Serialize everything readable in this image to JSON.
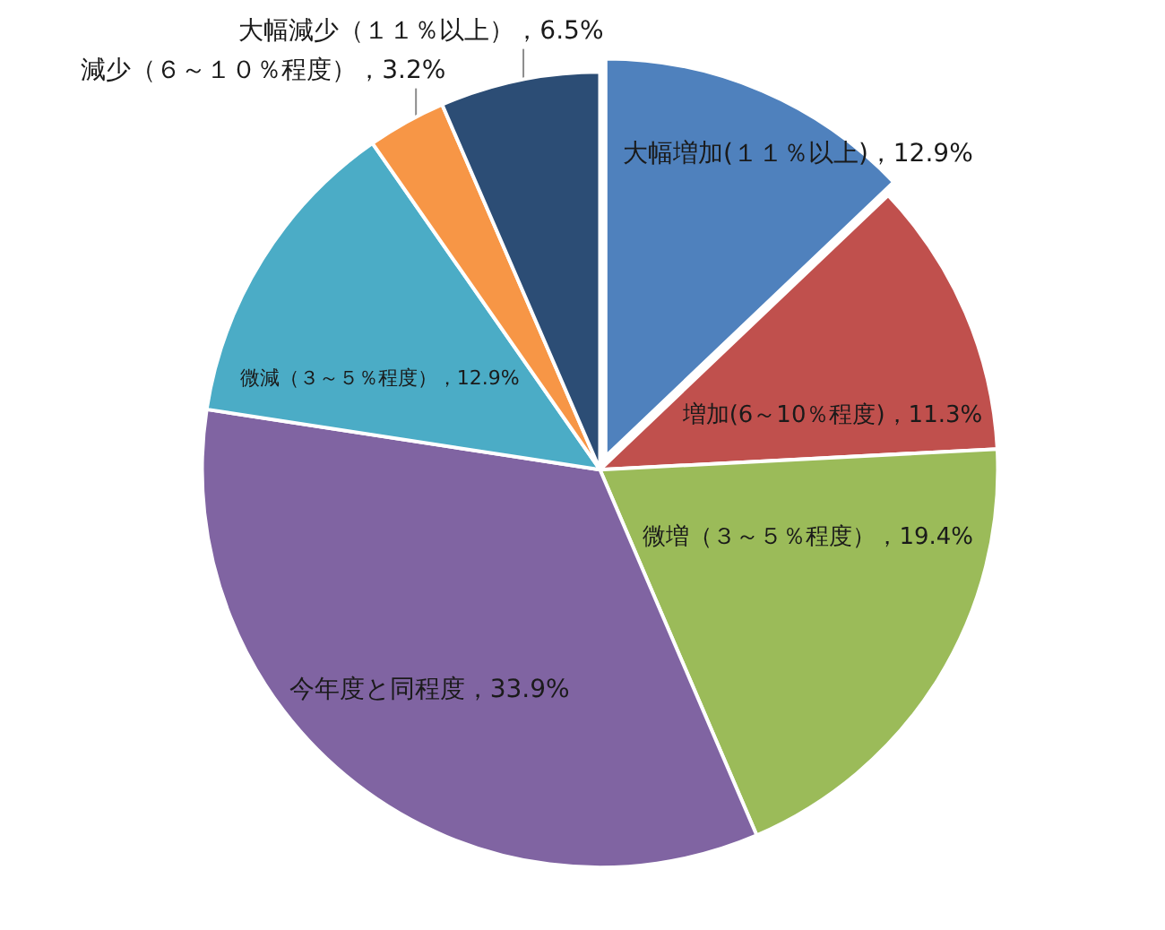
{
  "chart_data": {
    "type": "pie",
    "categories": [
      "大幅増加(１１％以上)",
      "増加(6～10％程度)",
      "微増（３～５％程度）",
      "今年度と同程度",
      "微減（３～５％程度）",
      "減少（６～１０％程度）",
      "大幅減少（１１％以上）"
    ],
    "values": [
      12.9,
      11.3,
      19.4,
      33.9,
      12.9,
      3.2,
      6.5
    ],
    "value_labels": [
      "12.9%",
      "11.3%",
      "19.4%",
      "33.9%",
      "12.9%",
      "3.2%",
      "6.5%"
    ],
    "colors": [
      "#4f81bd",
      "#c0504d",
      "#9bbb59",
      "#8064a2",
      "#4bacc6",
      "#f79646",
      "#2c4d75"
    ]
  }
}
